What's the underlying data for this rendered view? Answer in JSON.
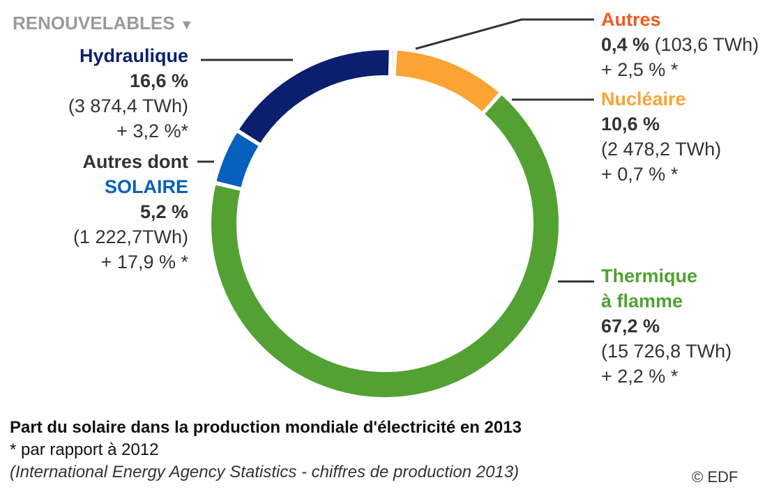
{
  "header": {
    "renewables_label": "RENOUVELABLES",
    "dropdown_glyph": "▼"
  },
  "chart_data": {
    "type": "pie",
    "subtype": "donut",
    "title": "Part du solaire dans la production mondiale d'électricité en 2013",
    "unit": "%",
    "slices": [
      {
        "key": "autres",
        "name": "Autres",
        "value": 0.4,
        "color": "#F15A22",
        "name_color": "#F15A22",
        "pct_label": "0,4 %",
        "twh": "(103,6 TWh)",
        "change": "+ 2,5 % *"
      },
      {
        "key": "nucleaire",
        "name": "Nucléaire",
        "value": 10.6,
        "color": "#FBA333",
        "name_color": "#FBA333",
        "pct_label": "10,6 %",
        "twh": "(2 478,2 TWh)",
        "change": "+ 0,7 % *"
      },
      {
        "key": "thermique",
        "name": "Thermique à flamme",
        "value": 67.2,
        "color": "#52A132",
        "name_color": "#52A132",
        "pct_label": "67,2 %",
        "twh": "(15 726,8 TWh)",
        "change": "+ 2,2 % *"
      },
      {
        "key": "autres_dont",
        "name": "Autres dont SOLAIRE",
        "value": 5.2,
        "color": "#0660BD",
        "name_color": "#333333",
        "pct_label": "5,2 %",
        "twh": "(1 222,7TWh)",
        "change": "+ 17,9 % *"
      },
      {
        "key": "hydraulique",
        "name": "Hydraulique",
        "value": 16.6,
        "color": "#0A1F6E",
        "name_color": "#0A1F6E",
        "pct_label": "16,6 %",
        "twh": "(3 874,4  TWh)",
        "change": "+ 3,2 %*"
      }
    ]
  },
  "labels": {
    "autres": {
      "name": "Autres",
      "pct": "0,4 %",
      "twh": "(103,6 TWh)",
      "change": "+ 2,5 % *"
    },
    "nucleaire": {
      "name": "Nucléaire",
      "pct": "10,6 %",
      "twh": "(2 478,2 TWh)",
      "change": "+ 0,7 % *"
    },
    "thermique": {
      "name_line1": "Thermique",
      "name_line2": "à flamme",
      "pct": "67,2 %",
      "twh": "(15 726,8 TWh)",
      "change": "+ 2,2 % *"
    },
    "autres_dont": {
      "name_line1": "Autres dont",
      "name_line2": "SOLAIRE",
      "pct": "5,2 %",
      "twh": "(1 222,7TWh)",
      "change": "+ 17,9 % *"
    },
    "hydraulique": {
      "name": "Hydraulique",
      "pct": "16,6 %",
      "twh": "(3 874,4  TWh)",
      "change": "+ 3,2 %*"
    }
  },
  "colors": {
    "autres": "#F15A22",
    "nucleaire": "#FBA333",
    "thermique": "#52A132",
    "solaire": "#0660BD",
    "hydraulique": "#0A1F6E",
    "leader": "#333333",
    "muted": "#9A9A9A"
  },
  "caption": {
    "title": "Part du solaire dans la production mondiale d'électricité en 2013",
    "note": "* par rapport à 2012",
    "source": "(International Energy Agency Statistics - chiffres de production 2013)"
  },
  "credit": "© EDF"
}
